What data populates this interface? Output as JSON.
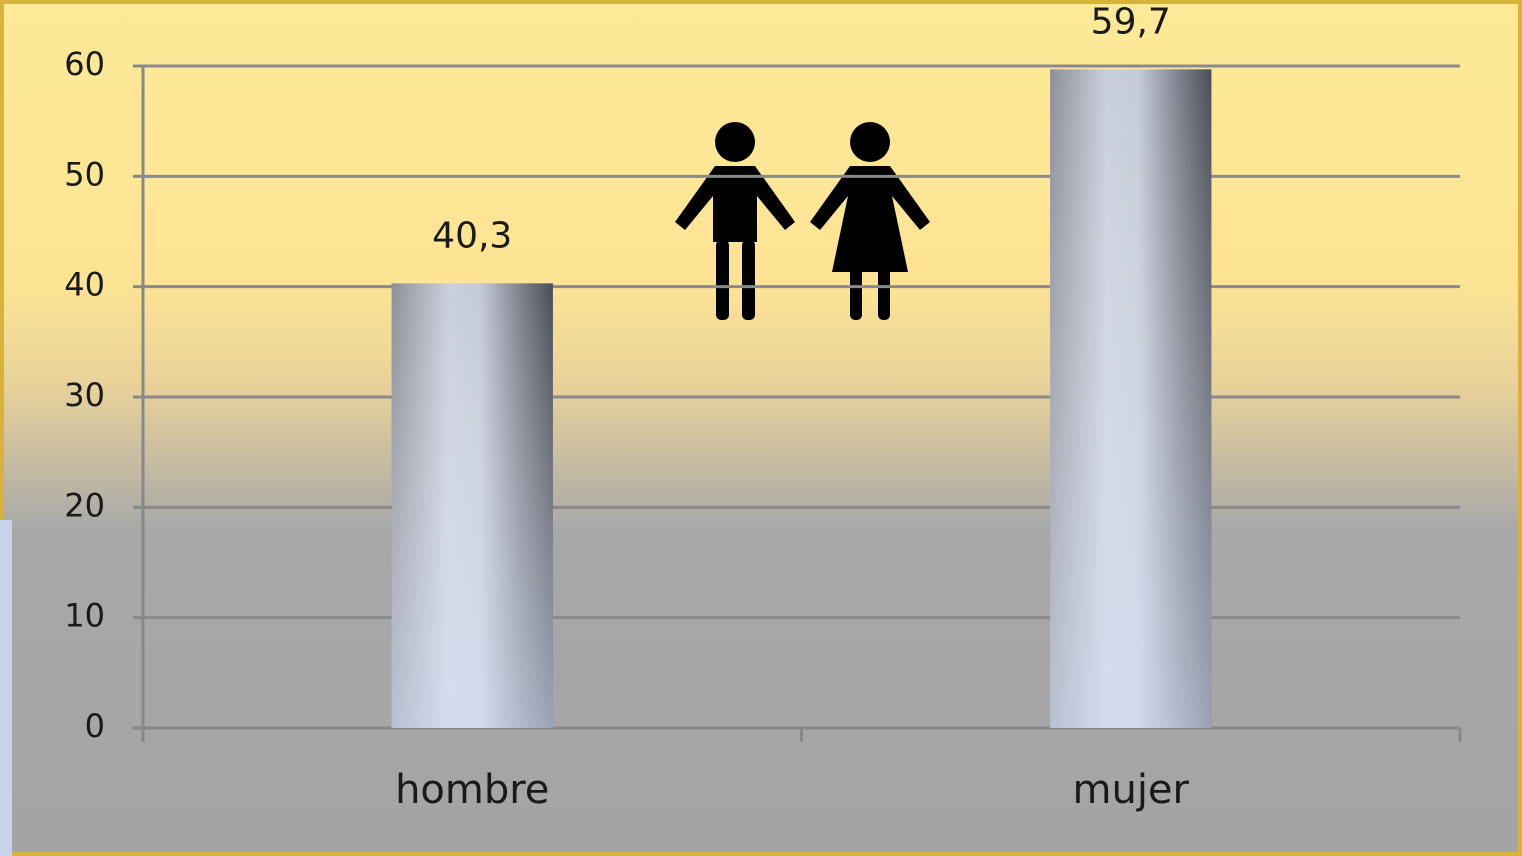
{
  "chart_data": {
    "type": "bar",
    "categories": [
      "hombre",
      "mujer"
    ],
    "values": [
      40.3,
      59.7
    ],
    "value_labels": [
      "40,3",
      "59,7"
    ],
    "ylim": [
      0,
      60
    ],
    "yticks": [
      0,
      10,
      20,
      30,
      40,
      50,
      60
    ],
    "grid": true
  }
}
